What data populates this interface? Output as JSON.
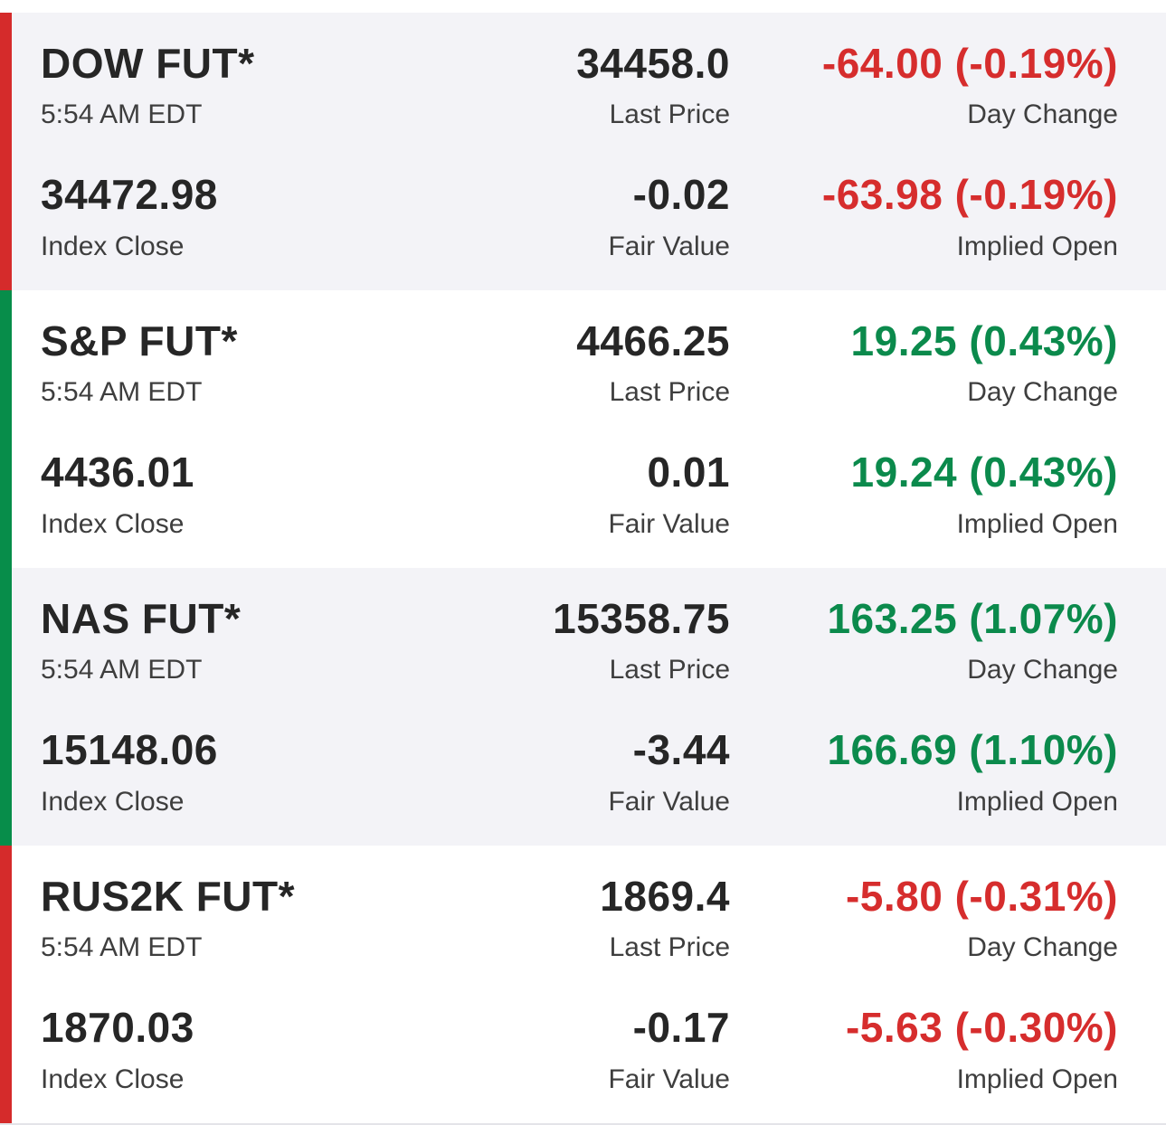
{
  "colors": {
    "negative": "#d62d2d",
    "positive": "#0b8a4c",
    "stripe_down": "#d52b2b",
    "stripe_up": "#078d4a"
  },
  "futures": [
    {
      "name": "DOW FUT*",
      "time": "5:54 AM EDT",
      "last_price": "34458.0",
      "last_price_label": "Last Price",
      "day_change": "-64.00 (-0.19%)",
      "day_change_label": "Day Change",
      "index_close": "34472.98",
      "index_close_label": "Index Close",
      "fair_value": "-0.02",
      "fair_value_label": "Fair Value",
      "implied_open": "-63.98 (-0.19%)",
      "implied_open_label": "Implied Open",
      "direction": "down"
    },
    {
      "name": "S&P FUT*",
      "time": "5:54 AM EDT",
      "last_price": "4466.25",
      "last_price_label": "Last Price",
      "day_change": "19.25 (0.43%)",
      "day_change_label": "Day Change",
      "index_close": "4436.01",
      "index_close_label": "Index Close",
      "fair_value": "0.01",
      "fair_value_label": "Fair Value",
      "implied_open": "19.24 (0.43%)",
      "implied_open_label": "Implied Open",
      "direction": "up"
    },
    {
      "name": "NAS FUT*",
      "time": "5:54 AM EDT",
      "last_price": "15358.75",
      "last_price_label": "Last Price",
      "day_change": "163.25 (1.07%)",
      "day_change_label": "Day Change",
      "index_close": "15148.06",
      "index_close_label": "Index Close",
      "fair_value": "-3.44",
      "fair_value_label": "Fair Value",
      "implied_open": "166.69 (1.10%)",
      "implied_open_label": "Implied Open",
      "direction": "up"
    },
    {
      "name": "RUS2K FUT*",
      "time": "5:54 AM EDT",
      "last_price": "1869.4",
      "last_price_label": "Last Price",
      "day_change": "-5.80 (-0.31%)",
      "day_change_label": "Day Change",
      "index_close": "1870.03",
      "index_close_label": "Index Close",
      "fair_value": "-0.17",
      "fair_value_label": "Fair Value",
      "implied_open": "-5.63 (-0.30%)",
      "implied_open_label": "Implied Open",
      "direction": "down"
    }
  ]
}
